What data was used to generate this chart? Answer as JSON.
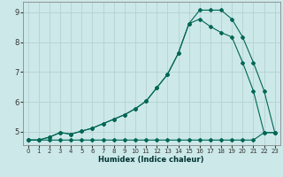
{
  "xlabel": "Humidex (Indice chaleur)",
  "background_color": "#cce8e8",
  "grid_color": "#b8d4d4",
  "line_color": "#006655",
  "xlim": [
    -0.5,
    23.5
  ],
  "ylim": [
    4.55,
    9.35
  ],
  "xticks": [
    0,
    1,
    2,
    3,
    4,
    5,
    6,
    7,
    8,
    9,
    10,
    11,
    12,
    13,
    14,
    15,
    16,
    17,
    18,
    19,
    20,
    21,
    22,
    23
  ],
  "yticks": [
    5,
    6,
    7,
    8,
    9
  ],
  "line1_x": [
    0,
    1,
    2,
    3,
    4,
    5,
    6,
    7,
    8,
    9,
    10,
    11,
    12,
    13,
    14,
    15,
    16,
    17,
    18,
    19,
    20,
    21,
    22,
    23
  ],
  "line1_y": [
    4.72,
    4.72,
    4.82,
    4.97,
    4.92,
    5.02,
    5.12,
    5.27,
    5.42,
    5.57,
    5.77,
    6.02,
    6.47,
    6.92,
    7.62,
    8.62,
    9.07,
    9.07,
    9.07,
    8.77,
    8.17,
    7.32,
    6.37,
    4.97
  ],
  "line2_x": [
    0,
    1,
    2,
    3,
    4,
    5,
    6,
    7,
    8,
    9,
    10,
    11,
    12,
    13,
    14,
    15,
    16,
    17,
    18,
    19,
    20,
    21,
    22,
    23
  ],
  "line2_y": [
    4.72,
    4.72,
    4.72,
    4.72,
    4.72,
    4.72,
    4.72,
    4.72,
    4.72,
    4.72,
    4.72,
    4.72,
    4.72,
    4.72,
    4.72,
    4.72,
    4.72,
    4.72,
    4.72,
    4.72,
    4.72,
    4.72,
    4.97,
    4.97
  ],
  "line3_x": [
    0,
    1,
    2,
    3,
    4,
    5,
    6,
    7,
    8,
    9,
    10,
    11,
    12,
    13,
    14,
    15,
    16,
    17,
    18,
    19,
    20,
    21,
    22,
    23
  ],
  "line3_y": [
    4.72,
    4.72,
    4.82,
    4.97,
    4.92,
    5.02,
    5.12,
    5.27,
    5.42,
    5.57,
    5.77,
    6.02,
    6.47,
    6.92,
    7.62,
    8.62,
    8.77,
    8.52,
    8.32,
    8.17,
    7.32,
    6.37,
    4.97,
    4.97
  ]
}
